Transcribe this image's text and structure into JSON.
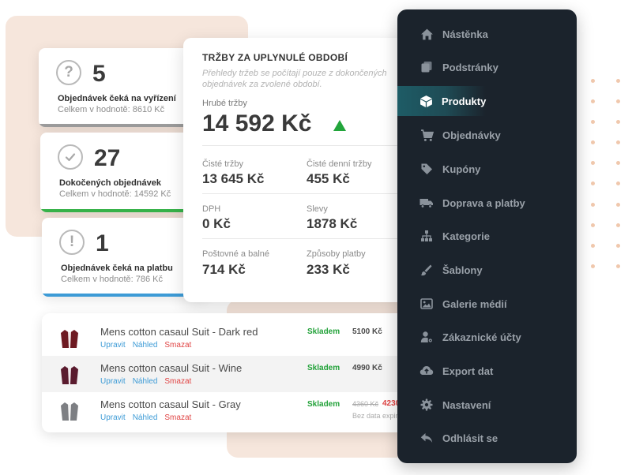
{
  "stats": [
    {
      "value": "5",
      "label": "Objednávek čeká na vyřízení",
      "sub": "Celkem v hodnotě: 8610 Kč",
      "bar_color": "#9b9b9b",
      "icon": "question-icon"
    },
    {
      "value": "27",
      "label": "Dokočených objednávek",
      "sub": "Celkem v hodnotě: 14592 Kč",
      "bar_color": "#38b24a",
      "icon": "check-circle-icon"
    },
    {
      "value": "1",
      "label": "Objednávek čeká na platbu",
      "sub": "Celkem v hodnotě: 786 Kč",
      "bar_color": "#3d9bd6",
      "icon": "alert-icon"
    }
  ],
  "revenue": {
    "title": "TRŽBY ZA UPLYNULÉ OBDOBÍ",
    "description": "Přehledy tržeb se počítají pouze z dokončených objednávek za zvolené období.",
    "gross_label": "Hrubé tržby",
    "gross_value": "14 592 Kč",
    "trend": "up",
    "items": [
      {
        "label": "Čisté tržby",
        "value": "13 645 Kč"
      },
      {
        "label": "Čisté denní tržby",
        "value": "455 Kč"
      },
      {
        "label": "DPH",
        "value": "0 Kč"
      },
      {
        "label": "Slevy",
        "value": "1878 Kč"
      },
      {
        "label": "Poštovné a balné",
        "value": "714 Kč"
      },
      {
        "label": "Způsoby platby",
        "value": "233 Kč"
      }
    ]
  },
  "products": {
    "action_edit": "Upravit",
    "action_preview": "Náhled",
    "action_delete": "Smazat",
    "rows": [
      {
        "name": "Mens cotton casaul Suit - Dark red",
        "stock": "Skladem",
        "price": "5100 Kč",
        "color": "#6e1a22"
      },
      {
        "name": "Mens cotton casaul Suit - Wine",
        "stock": "Skladem",
        "price": "4990 Kč",
        "color": "#5a1b2e"
      },
      {
        "name": "Mens cotton casaul Suit - Gray",
        "stock": "Skladem",
        "old_price": "4360 Kč",
        "new_price": "4230",
        "note": "Bez data expirac",
        "color": "#7d7f83"
      }
    ]
  },
  "sidebar": {
    "items": [
      {
        "label": "Nástěnka",
        "icon": "home-icon"
      },
      {
        "label": "Podstránky",
        "icon": "pages-icon"
      },
      {
        "label": "Produkty",
        "icon": "box-icon",
        "active": true
      },
      {
        "label": "Objednávky",
        "icon": "cart-icon"
      },
      {
        "label": "Kupóny",
        "icon": "tag-icon"
      },
      {
        "label": "Doprava a platby",
        "icon": "truck-icon"
      },
      {
        "label": "Kategorie",
        "icon": "sitemap-icon"
      },
      {
        "label": "Šablony",
        "icon": "brush-icon"
      },
      {
        "label": "Galerie médií",
        "icon": "image-icon"
      },
      {
        "label": "Zákaznické účty",
        "icon": "user-gear-icon"
      },
      {
        "label": "Export dat",
        "icon": "cloud-export-icon"
      },
      {
        "label": "Nastavení",
        "icon": "gear-icon"
      },
      {
        "label": "Odhlásit se",
        "icon": "logout-icon"
      }
    ]
  }
}
